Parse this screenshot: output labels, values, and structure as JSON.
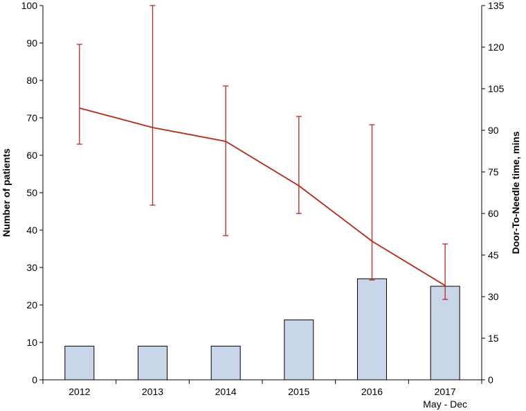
{
  "chart_data": {
    "type": "bar",
    "categories": [
      "2012",
      "2013",
      "2014",
      "2015",
      "2016",
      "2017"
    ],
    "category_sublabels": [
      "",
      "",
      "",
      "",
      "",
      "May - Dec"
    ],
    "left_axis": {
      "label": "Number of patients",
      "range": [
        0,
        100
      ],
      "ticks": [
        "0",
        "10",
        "20",
        "30",
        "40",
        "50",
        "60",
        "70",
        "80",
        "90",
        "100"
      ]
    },
    "right_axis": {
      "label": "Door-To-Needle time, mins",
      "range": [
        0,
        135
      ],
      "ticks": [
        "0",
        "15",
        "30",
        "45",
        "60",
        "75",
        "90",
        "105",
        "120",
        "135"
      ]
    },
    "bars": {
      "axis": "left",
      "values": [
        9,
        9,
        9,
        16,
        27,
        25
      ]
    },
    "line": {
      "type": "line",
      "axis": "right",
      "values": [
        98,
        91,
        86,
        70,
        50,
        34
      ],
      "error_low": [
        85,
        63,
        52,
        60,
        36,
        29
      ],
      "error_high": [
        121,
        135,
        106,
        95,
        92,
        49
      ]
    },
    "grid": false,
    "legend": "none",
    "colors": {
      "bars": "#c9d6ea",
      "line": "#b5281a"
    }
  }
}
